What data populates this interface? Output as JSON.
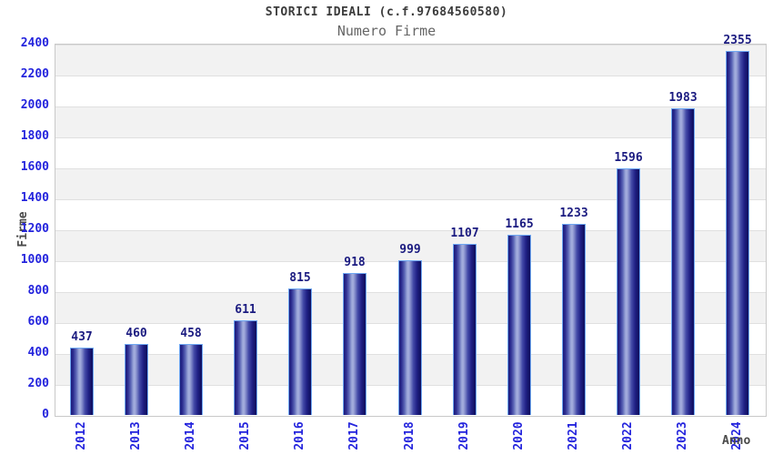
{
  "chart_data": {
    "type": "bar",
    "title": "STORICI IDEALI (c.f.97684560580)",
    "subtitle": "Numero Firme",
    "xlabel": "Anno",
    "ylabel": "Firme",
    "categories": [
      "2012",
      "2013",
      "2014",
      "2015",
      "2016",
      "2017",
      "2018",
      "2019",
      "2020",
      "2021",
      "2022",
      "2023",
      "2024"
    ],
    "values": [
      437,
      460,
      458,
      611,
      815,
      918,
      999,
      1107,
      1165,
      1233,
      1596,
      1983,
      2355
    ],
    "ylim": [
      0,
      2400
    ],
    "ytick_step": 200,
    "grid": "horizontal gridlines with alternating gray/white 200-unit bands",
    "legend": "none",
    "colors": {
      "tick_label": "#2424dd",
      "value_label": "#1b1b80",
      "bar_dark": "#1c1c7b",
      "bar_highlight": "#a6afde",
      "bar_border": "#6ea7f2",
      "band_gray": "#f2f2f2",
      "band_white": "#ffffff",
      "gridline": "#e0e0e0",
      "title_color": "#3c3c3c",
      "subtitle_color": "#666666",
      "axis_title_color": "#4a4a4a"
    }
  }
}
